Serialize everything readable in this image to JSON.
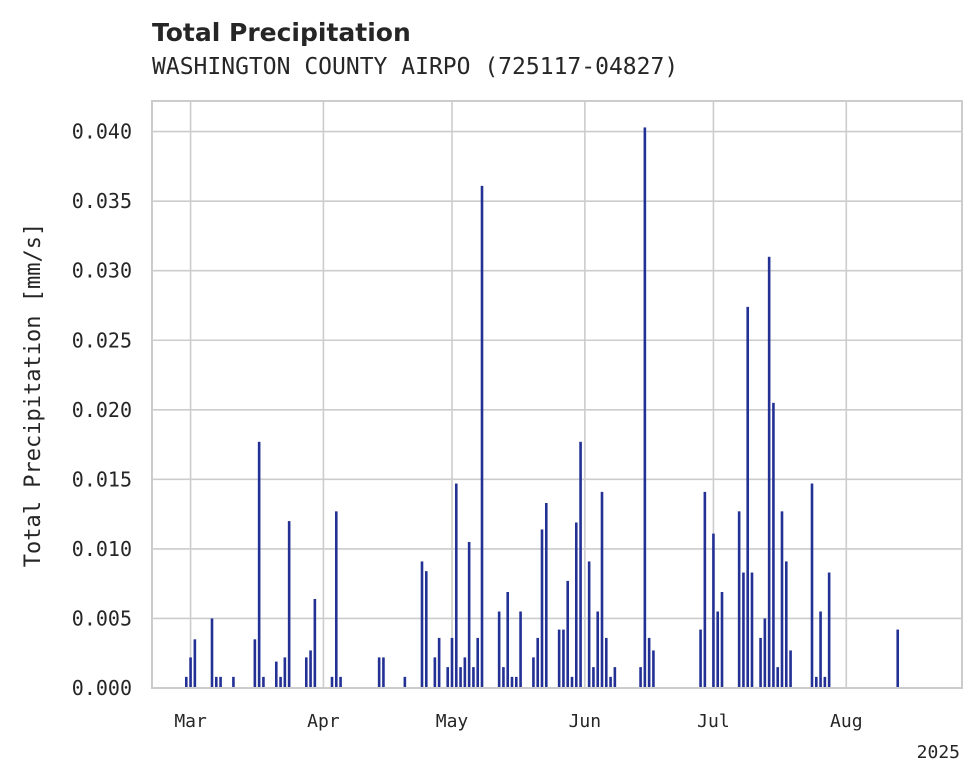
{
  "chart_data": {
    "type": "bar",
    "title": "Total Precipitation",
    "subtitle": "WASHINGTON COUNTY AIRPO (725117-04827)",
    "xlabel": "",
    "ylabel": "Total Precipitation [mm/s]",
    "ylim": [
      0,
      0.0422
    ],
    "xlim": [
      "2025-02-20",
      "2025-08-28"
    ],
    "grid": true,
    "y_ticks": [
      "0.000",
      "0.005",
      "0.010",
      "0.015",
      "0.020",
      "0.025",
      "0.030",
      "0.035",
      "0.040"
    ],
    "x_ticks": [
      {
        "label": "Mar",
        "date": "2025-03-01"
      },
      {
        "label": "Apr",
        "date": "2025-04-01"
      },
      {
        "label": "May",
        "date": "2025-05-01"
      },
      {
        "label": "Jun",
        "date": "2025-06-01"
      },
      {
        "label": "Jul",
        "date": "2025-07-01"
      },
      {
        "label": "Aug",
        "date": "2025-08-01"
      }
    ],
    "x_offset_label": "2025",
    "color": "#233195",
    "series": [
      {
        "x": [
          "2025-02-28",
          "2025-03-01",
          "2025-03-02",
          "2025-03-06",
          "2025-03-07",
          "2025-03-08",
          "2025-03-11",
          "2025-03-16",
          "2025-03-17",
          "2025-03-18",
          "2025-03-21",
          "2025-03-22",
          "2025-03-23",
          "2025-03-24",
          "2025-03-28",
          "2025-03-29",
          "2025-03-30",
          "2025-04-03",
          "2025-04-04",
          "2025-04-05",
          "2025-04-14",
          "2025-04-15",
          "2025-04-20",
          "2025-04-24",
          "2025-04-25",
          "2025-04-27",
          "2025-04-28",
          "2025-04-30",
          "2025-05-01",
          "2025-05-02",
          "2025-05-03",
          "2025-05-04",
          "2025-05-05",
          "2025-05-06",
          "2025-05-07",
          "2025-05-08",
          "2025-05-12",
          "2025-05-13",
          "2025-05-14",
          "2025-05-15",
          "2025-05-16",
          "2025-05-17",
          "2025-05-20",
          "2025-05-21",
          "2025-05-22",
          "2025-05-23",
          "2025-05-26",
          "2025-05-27",
          "2025-05-28",
          "2025-05-29",
          "2025-05-30",
          "2025-05-31",
          "2025-06-02",
          "2025-06-03",
          "2025-06-04",
          "2025-06-05",
          "2025-06-06",
          "2025-06-07",
          "2025-06-08",
          "2025-06-14",
          "2025-06-15",
          "2025-06-16",
          "2025-06-17",
          "2025-06-28",
          "2025-06-29",
          "2025-07-01",
          "2025-07-02",
          "2025-07-03",
          "2025-07-07",
          "2025-07-08",
          "2025-07-09",
          "2025-07-10",
          "2025-07-12",
          "2025-07-13",
          "2025-07-14",
          "2025-07-15",
          "2025-07-16",
          "2025-07-17",
          "2025-07-18",
          "2025-07-19",
          "2025-07-24",
          "2025-07-25",
          "2025-07-26",
          "2025-07-27",
          "2025-07-28",
          "2025-08-13"
        ],
        "values": [
          0.0008,
          0.0022,
          0.0035,
          0.005,
          0.0008,
          0.0008,
          0.0008,
          0.0035,
          0.0177,
          0.0008,
          0.0019,
          0.0008,
          0.0022,
          0.012,
          0.0022,
          0.0027,
          0.0064,
          0.0008,
          0.0127,
          0.0008,
          0.0022,
          0.0022,
          0.0008,
          0.0091,
          0.0084,
          0.0022,
          0.0036,
          0.0015,
          0.0036,
          0.0147,
          0.0015,
          0.0022,
          0.0105,
          0.0015,
          0.0036,
          0.0361,
          0.0055,
          0.0015,
          0.0069,
          0.0008,
          0.0008,
          0.0055,
          0.0022,
          0.0036,
          0.0114,
          0.0133,
          0.0042,
          0.0042,
          0.0077,
          0.0008,
          0.0119,
          0.0177,
          0.0091,
          0.0015,
          0.0055,
          0.0141,
          0.0036,
          0.0008,
          0.0015,
          0.0015,
          0.0403,
          0.0036,
          0.0027,
          0.0042,
          0.0141,
          0.0111,
          0.0055,
          0.0069,
          0.0127,
          0.0083,
          0.0274,
          0.0083,
          0.0036,
          0.005,
          0.031,
          0.0205,
          0.0015,
          0.0127,
          0.0091,
          0.0027,
          0.0147,
          0.0008,
          0.0055,
          0.0008,
          0.0083,
          0.0042
        ]
      }
    ]
  }
}
